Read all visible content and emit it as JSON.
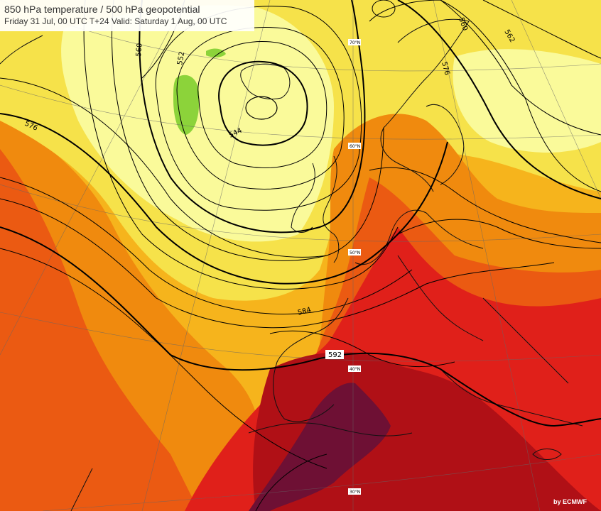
{
  "header": {
    "title": "850 hPa temperature / 500 hPa geopotential",
    "subtitle": "Friday 31 Jul, 00 UTC T+24 Valid: Saturday 1 Aug, 00 UTC"
  },
  "credit": "by ECMWF",
  "contour_labels": {
    "c544": "544",
    "c552": "552",
    "c560a": "560",
    "c560b": "560",
    "c576": "576",
    "c584": "584",
    "c592": "592",
    "c562": "562",
    "c576b": "576"
  },
  "lat_labels": {
    "lat70": "70°N",
    "lat60": "60°N",
    "lat50": "50°N",
    "lat40": "40°N",
    "lat30": "30°N"
  },
  "colors": {
    "cold": "#8cd33a",
    "pale_yellow": "#fafa9a",
    "yellow": "#f6e24a",
    "light_orange": "#f6b41c",
    "orange": "#f08a0e",
    "red_orange": "#eb5a12",
    "red": "#e0201a",
    "dark_red": "#b01016",
    "maroon": "#6e1034"
  }
}
